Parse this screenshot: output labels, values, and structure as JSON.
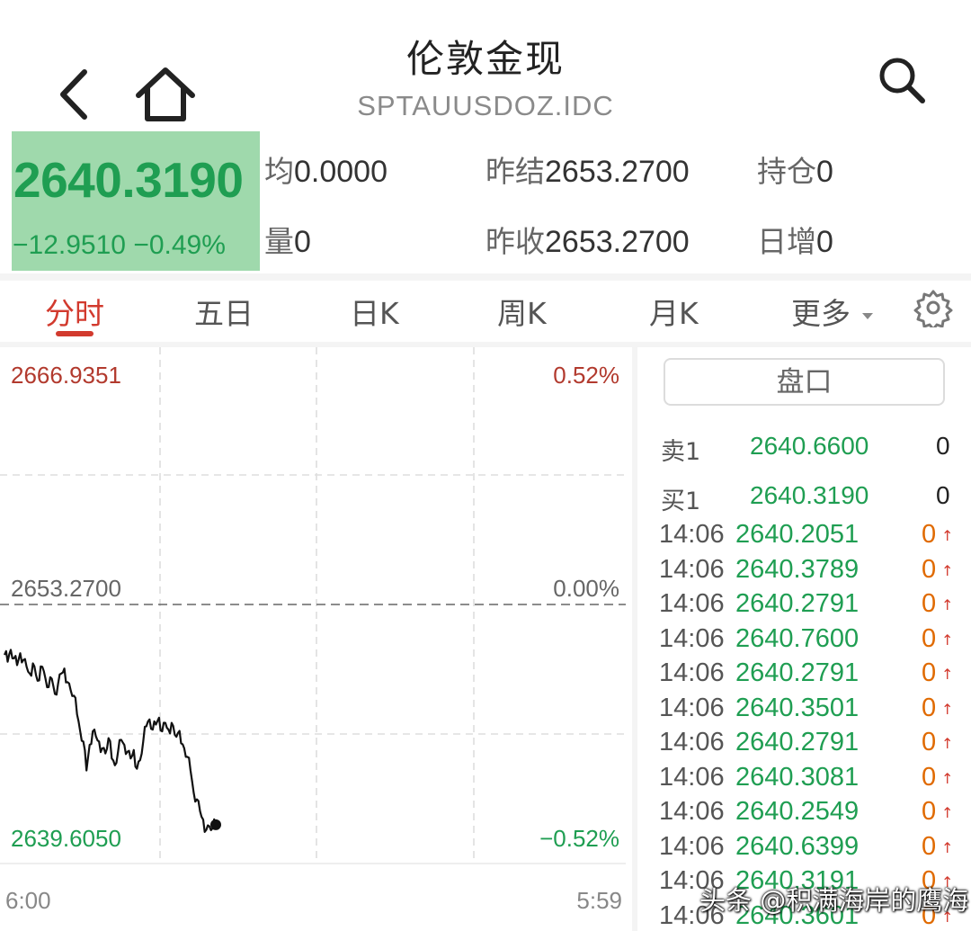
{
  "header": {
    "title": "伦敦金现",
    "code": "SPTAUUSDOZ.IDC",
    "icons": {
      "back": "chevron-left-icon",
      "home": "home-icon",
      "search": "search-icon"
    }
  },
  "quote": {
    "price": "2640.3190",
    "change": "−12.9510",
    "change_pct": "−0.49%",
    "stats": [
      {
        "label": "均",
        "value": "0.0000"
      },
      {
        "label": "昨结",
        "value": "2653.2700"
      },
      {
        "label": "持仓",
        "value": "0"
      },
      {
        "label": "量",
        "value": "0"
      },
      {
        "label": "昨收",
        "value": "2653.2700"
      },
      {
        "label": "日增",
        "value": "0"
      }
    ]
  },
  "tabs": [
    {
      "label": "分时",
      "active": true
    },
    {
      "label": "五日"
    },
    {
      "label": "日K"
    },
    {
      "label": "周K"
    },
    {
      "label": "月K"
    },
    {
      "label": "更多"
    }
  ],
  "settings_icon": "gear-icon",
  "chart": {
    "y_top": "2666.9351",
    "y_mid": "2653.2700",
    "y_bottom": "2639.6050",
    "pct_top": "0.52%",
    "pct_mid": "0.00%",
    "pct_bottom": "−0.52%",
    "x_start": "6:00",
    "x_end": "5:59"
  },
  "chart_data": {
    "type": "line",
    "title": "",
    "xlabel": "",
    "ylabel": "",
    "ylim": [
      2639.605,
      2666.9351
    ],
    "reference": 2653.27,
    "x_range": [
      "6:00",
      "5:59"
    ],
    "series": [
      {
        "values": [
          2650.3,
          2649.9,
          2650.6,
          2650.1,
          2649.7,
          2650.4,
          2650.0,
          2649.6,
          2649.2,
          2649.8,
          2649.1,
          2648.8,
          2649.6,
          2648.9,
          2648.4,
          2648.9,
          2648.0,
          2648.6,
          2649.2,
          2649.5,
          2648.7,
          2648.2,
          2647.9,
          2646.8,
          2645.8,
          2645.2,
          2643.5,
          2645.0,
          2645.8,
          2645.5,
          2645.2,
          2644.8,
          2644.5,
          2645.4,
          2644.2,
          2643.8,
          2644.6,
          2645.3,
          2645.0,
          2644.6,
          2644.2,
          2644.7,
          2643.6,
          2644.1,
          2645.2,
          2646.1,
          2646.5,
          2645.9,
          2646.2,
          2646.6,
          2645.8,
          2646.3,
          2645.9,
          2646.3,
          2645.6,
          2645.7,
          2645.1,
          2644.8,
          2644.3,
          2643.5,
          2642.2,
          2641.8,
          2641.1,
          2640.6,
          2640.0,
          2640.2,
          2640.1,
          2640.3
        ]
      }
    ]
  },
  "order_book": {
    "button": "盘口",
    "levels": [
      {
        "label": "卖1",
        "price": "2640.6600",
        "volume": "0"
      },
      {
        "label": "买1",
        "price": "2640.3190",
        "volume": "0"
      }
    ]
  },
  "trades": [
    {
      "time": "14:06",
      "price": "2640.2051",
      "volume": "0"
    },
    {
      "time": "14:06",
      "price": "2640.3789",
      "volume": "0"
    },
    {
      "time": "14:06",
      "price": "2640.2791",
      "volume": "0"
    },
    {
      "time": "14:06",
      "price": "2640.7600",
      "volume": "0"
    },
    {
      "time": "14:06",
      "price": "2640.2791",
      "volume": "0"
    },
    {
      "time": "14:06",
      "price": "2640.3501",
      "volume": "0"
    },
    {
      "time": "14:06",
      "price": "2640.2791",
      "volume": "0"
    },
    {
      "time": "14:06",
      "price": "2640.3081",
      "volume": "0"
    },
    {
      "time": "14:06",
      "price": "2640.2549",
      "volume": "0"
    },
    {
      "time": "14:06",
      "price": "2640.6399",
      "volume": "0"
    },
    {
      "time": "14:06",
      "price": "2640.3191",
      "volume": "0"
    },
    {
      "time": "14:06",
      "price": "2640.3601",
      "volume": "0"
    }
  ],
  "watermark": "头条 @积满海岸的鹰海",
  "colors": {
    "down": "#1f9e52",
    "up": "#d23a2e",
    "price_box": "#9fd9ac",
    "accent": "#d23a2e",
    "volume": "#e06a00"
  }
}
